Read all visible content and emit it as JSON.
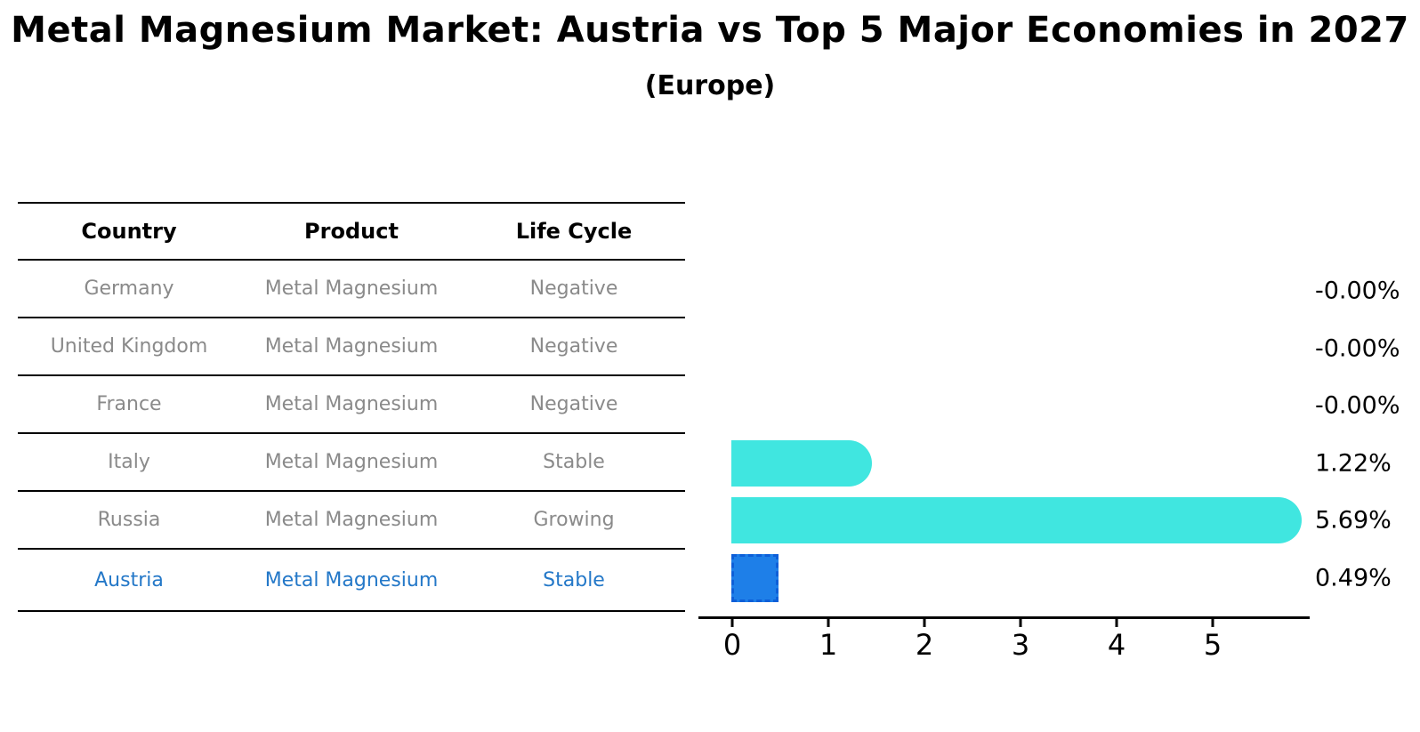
{
  "title": "Metal Magnesium Market: Austria vs Top 5 Major Economies in 2027",
  "subtitle": "(Europe)",
  "table": {
    "headers": [
      "Country",
      "Product",
      "Life Cycle"
    ],
    "rows": [
      {
        "country": "Germany",
        "product": "Metal Magnesium",
        "life_cycle": "Negative",
        "highlight": false
      },
      {
        "country": "United Kingdom",
        "product": "Metal Magnesium",
        "life_cycle": "Negative",
        "highlight": false
      },
      {
        "country": "France",
        "product": "Metal Magnesium",
        "life_cycle": "Negative",
        "highlight": false
      },
      {
        "country": "Italy",
        "product": "Metal Magnesium",
        "life_cycle": "Stable",
        "highlight": false
      },
      {
        "country": "Russia",
        "product": "Metal Magnesium",
        "life_cycle": "Growing",
        "highlight": false
      },
      {
        "country": "Austria",
        "product": "Metal Magnesium",
        "life_cycle": "Stable",
        "highlight": true
      }
    ]
  },
  "chart_data": {
    "type": "bar",
    "orientation": "horizontal",
    "categories": [
      "Germany",
      "United Kingdom",
      "France",
      "Italy",
      "Russia",
      "Austria"
    ],
    "values": [
      -0.0,
      -0.0,
      -0.0,
      1.22,
      5.69,
      0.49
    ],
    "labels": [
      "-0.00%",
      "-0.00%",
      "-0.00%",
      "1.22%",
      "5.69%",
      "0.49%"
    ],
    "highlight_index": 5,
    "xlim": [
      0,
      6
    ],
    "x_ticks": [
      0,
      1,
      2,
      3,
      4,
      5
    ],
    "grid": false,
    "legend": false
  },
  "colors": {
    "bar": "#40E6E0",
    "highlight_bar_fill": "#1E7FE8",
    "highlight_bar_border": "#0E5FD8",
    "highlight_text": "#2478c8",
    "row_text": "#8a8a8a",
    "axis": "#000000"
  }
}
